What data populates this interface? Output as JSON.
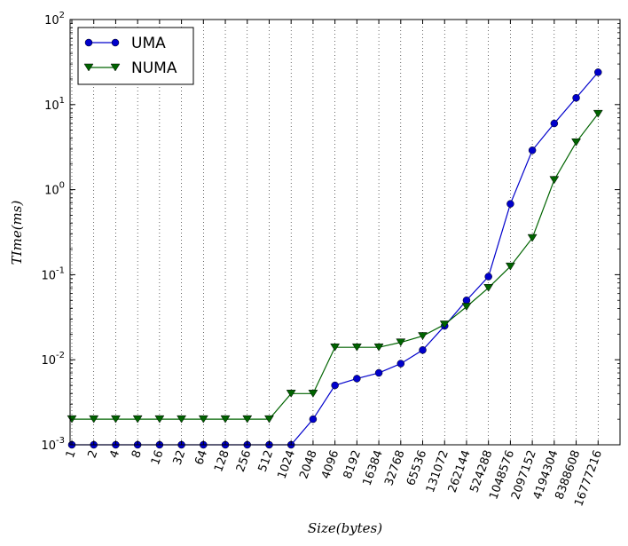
{
  "chart_data": {
    "type": "line",
    "title": "",
    "xlabel": "Size(bytes)",
    "ylabel": "TIme(ms)",
    "yscale": "log",
    "ylim": [
      0.001,
      100
    ],
    "y_ticks": [
      {
        "base": "10",
        "exp": "-3"
      },
      {
        "base": "10",
        "exp": "-2"
      },
      {
        "base": "10",
        "exp": "-1"
      },
      {
        "base": "10",
        "exp": "0"
      },
      {
        "base": "10",
        "exp": "1"
      },
      {
        "base": "10",
        "exp": "2"
      }
    ],
    "categories": [
      "1",
      "2",
      "4",
      "8",
      "16",
      "32",
      "64",
      "128",
      "256",
      "512",
      "1024",
      "2048",
      "4096",
      "8192",
      "16384",
      "32768",
      "65536",
      "131072",
      "262144",
      "524288",
      "1048576",
      "2097152",
      "4194304",
      "8388608",
      "16777216"
    ],
    "grid": "vertical dotted",
    "legend_position": "top-left",
    "series": [
      {
        "name": "UMA",
        "color": "#0000cc",
        "marker": "circle",
        "values": [
          0.001,
          0.001,
          0.001,
          0.001,
          0.001,
          0.001,
          0.001,
          0.001,
          0.001,
          0.001,
          0.001,
          0.002,
          0.005,
          0.006,
          0.007,
          0.009,
          0.013,
          0.025,
          0.05,
          0.095,
          0.68,
          2.9,
          6,
          12,
          24
        ]
      },
      {
        "name": "NUMA",
        "color": "#006400",
        "marker": "triangle-down",
        "values": [
          0.002,
          0.002,
          0.002,
          0.002,
          0.002,
          0.002,
          0.002,
          0.002,
          0.002,
          0.002,
          0.004,
          0.004,
          0.014,
          0.014,
          0.014,
          0.016,
          0.019,
          0.026,
          0.042,
          0.07,
          0.125,
          0.27,
          1.3,
          3.6,
          7.8
        ]
      }
    ]
  }
}
